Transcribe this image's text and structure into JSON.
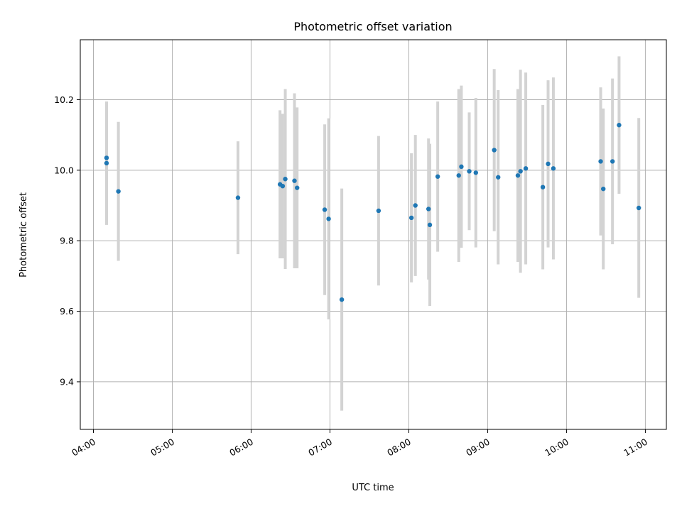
{
  "chart_data": {
    "type": "scatter",
    "title": "Photometric offset variation",
    "xlabel": "UTC time",
    "ylabel": "Photometric offset",
    "x_ticks": [
      "04:00",
      "05:00",
      "06:00",
      "07:00",
      "08:00",
      "09:00",
      "10:00",
      "11:00"
    ],
    "y_ticks": [
      "9.4",
      "9.6",
      "9.8",
      "10.0",
      "10.2"
    ],
    "xlim": [
      "03:50",
      "11:16"
    ],
    "ylim": [
      9.265,
      10.37
    ],
    "grid": true,
    "marker_color": "#1f77b4",
    "errorbar_color": "#d3d3d3",
    "points": [
      {
        "x": "04:10",
        "y": 10.035,
        "yerr": 0.095
      },
      {
        "x": "04:10",
        "y": 10.02,
        "yerr": 0.175
      },
      {
        "x": "04:19",
        "y": 9.94,
        "yerr": 0.197
      },
      {
        "x": "05:50",
        "y": 9.922,
        "yerr": 0.16
      },
      {
        "x": "06:22",
        "y": 9.96,
        "yerr": 0.21
      },
      {
        "x": "06:24",
        "y": 9.955,
        "yerr": 0.205
      },
      {
        "x": "06:26",
        "y": 9.975,
        "yerr": 0.255
      },
      {
        "x": "06:33",
        "y": 9.97,
        "yerr": 0.248
      },
      {
        "x": "06:35",
        "y": 9.95,
        "yerr": 0.228
      },
      {
        "x": "06:56",
        "y": 9.888,
        "yerr": 0.242
      },
      {
        "x": "06:59",
        "y": 9.862,
        "yerr": 0.285
      },
      {
        "x": "07:09",
        "y": 9.633,
        "yerr": 0.315
      },
      {
        "x": "07:37",
        "y": 9.885,
        "yerr": 0.212
      },
      {
        "x": "08:02",
        "y": 9.865,
        "yerr": 0.183
      },
      {
        "x": "08:05",
        "y": 9.9,
        "yerr": 0.2
      },
      {
        "x": "08:15",
        "y": 9.89,
        "yerr": 0.2
      },
      {
        "x": "08:16",
        "y": 9.845,
        "yerr": 0.23
      },
      {
        "x": "08:22",
        "y": 9.982,
        "yerr": 0.213
      },
      {
        "x": "08:38",
        "y": 9.985,
        "yerr": 0.245
      },
      {
        "x": "08:40",
        "y": 10.01,
        "yerr": 0.23
      },
      {
        "x": "08:46",
        "y": 9.997,
        "yerr": 0.167
      },
      {
        "x": "08:51",
        "y": 9.993,
        "yerr": 0.212
      },
      {
        "x": "09:05",
        "y": 10.057,
        "yerr": 0.23
      },
      {
        "x": "09:08",
        "y": 9.98,
        "yerr": 0.247
      },
      {
        "x": "09:23",
        "y": 9.985,
        "yerr": 0.245
      },
      {
        "x": "09:25",
        "y": 9.997,
        "yerr": 0.288
      },
      {
        "x": "09:29",
        "y": 10.005,
        "yerr": 0.272
      },
      {
        "x": "09:42",
        "y": 9.952,
        "yerr": 0.233
      },
      {
        "x": "09:46",
        "y": 10.018,
        "yerr": 0.237
      },
      {
        "x": "09:50",
        "y": 10.005,
        "yerr": 0.258
      },
      {
        "x": "10:26",
        "y": 10.025,
        "yerr": 0.21
      },
      {
        "x": "10:28",
        "y": 9.947,
        "yerr": 0.228
      },
      {
        "x": "10:35",
        "y": 10.025,
        "yerr": 0.235
      },
      {
        "x": "10:40",
        "y": 10.128,
        "yerr": 0.195
      },
      {
        "x": "10:55",
        "y": 9.893,
        "yerr": 0.255
      }
    ]
  }
}
